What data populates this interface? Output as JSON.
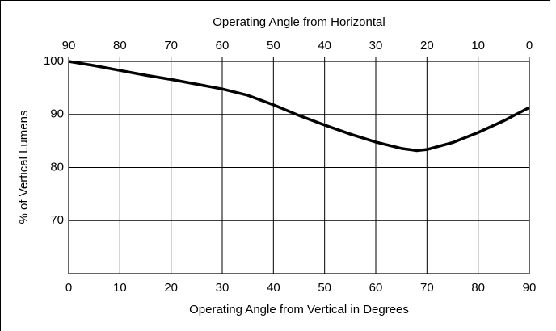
{
  "chart_data": {
    "type": "line",
    "title": "Operating Angle from Horizontal",
    "xlabel": "Operating Angle from Vertical in Degrees",
    "ylabel": "% of Vertical Lumens",
    "x": [
      0,
      5,
      10,
      15,
      20,
      25,
      30,
      35,
      40,
      45,
      50,
      55,
      60,
      65,
      68,
      70,
      75,
      80,
      85,
      90
    ],
    "series": [
      {
        "color": "#000000",
        "values": [
          100,
          99.2,
          98.3,
          97.4,
          96.6,
          95.7,
          94.8,
          93.6,
          91.8,
          89.8,
          88,
          86.3,
          84.8,
          83.6,
          83.2,
          83.4,
          84.7,
          86.6,
          88.8,
          91.3
        ]
      }
    ],
    "xlim": [
      0,
      90
    ],
    "xticks": [
      0,
      10,
      20,
      30,
      40,
      50,
      60,
      70,
      80,
      90
    ],
    "x2lim": [
      90,
      0
    ],
    "x2ticks": [
      90,
      80,
      70,
      60,
      50,
      40,
      30,
      20,
      10,
      0
    ],
    "ylim": [
      60,
      100
    ],
    "yticks": [
      70,
      80,
      90,
      100
    ],
    "grid": true
  }
}
